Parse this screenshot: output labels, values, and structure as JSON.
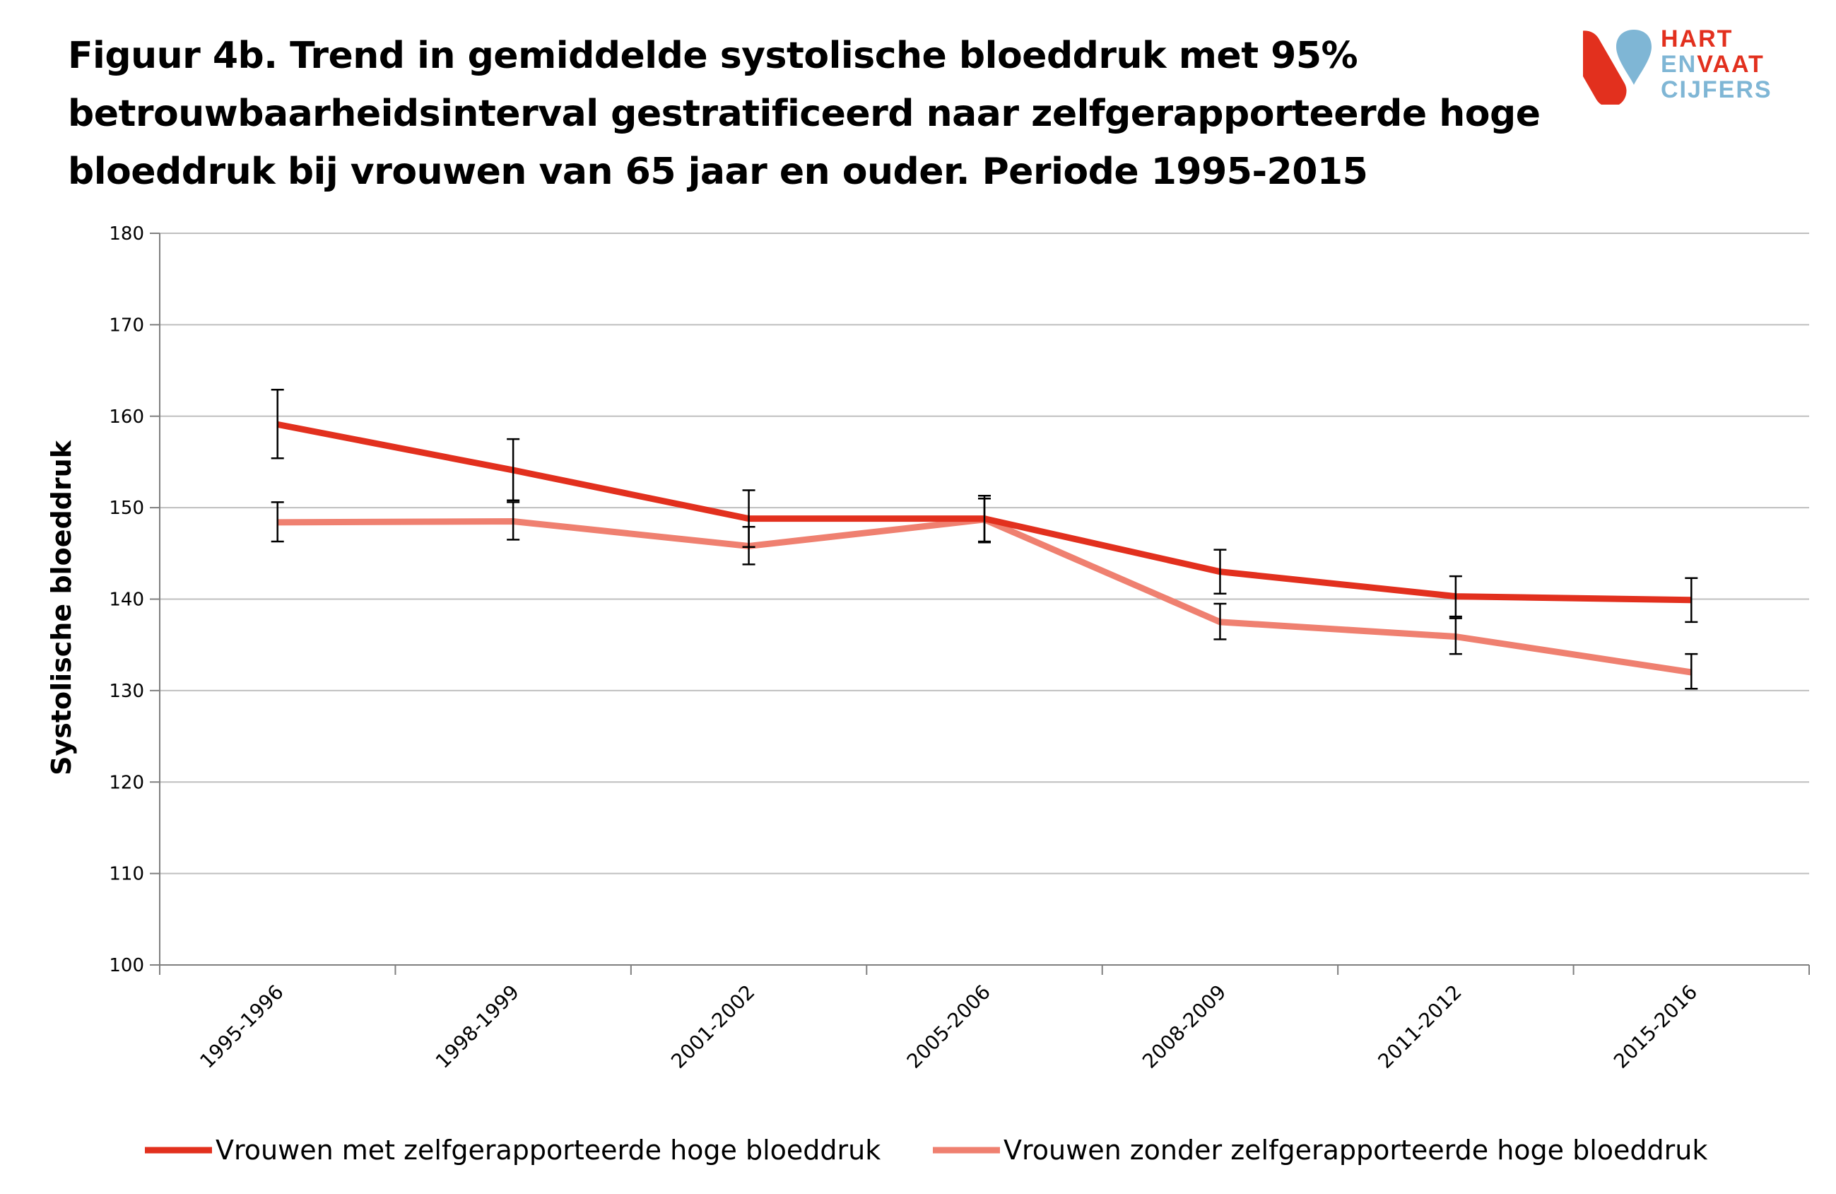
{
  "title_lines": [
    "Figuur 4b. Trend in gemiddelde systolische bloeddruk met 95%",
    "betrouwbaarheidsinterval gestratificeerd naar zelfgerapporteerde hoge",
    "bloeddruk bij vrouwen van 65 jaar en ouder. Periode 1995-2015"
  ],
  "logo": {
    "line1": "HART",
    "line2a": "EN",
    "line2b": "VAAT",
    "line3": "CIJFERS",
    "red": "#e2301e",
    "blue": "#7fb6d5"
  },
  "chart_data": {
    "type": "line",
    "title": "Figuur 4b. Trend in gemiddelde systolische bloeddruk met 95% betrouwbaarheidsinterval gestratificeerd naar zelfgerapporteerde hoge bloeddruk bij vrouwen van 65 jaar en ouder. Periode 1995-2015",
    "xlabel": "",
    "ylabel": "Systolische bloeddruk",
    "ylim": [
      100,
      180
    ],
    "yticks": [
      100,
      110,
      120,
      130,
      140,
      150,
      160,
      170,
      180
    ],
    "grid": true,
    "legend": "bottom",
    "categories": [
      "1995-1996",
      "1998-1999",
      "2001-2002",
      "2005-2006",
      "2008-2009",
      "2011-2012",
      "2015-2016"
    ],
    "series": [
      {
        "name": "Vrouwen met zelfgerapporteerde hoge bloeddruk",
        "color": "#e2301e",
        "values": [
          159.1,
          154.1,
          148.8,
          148.8,
          143.0,
          140.3,
          139.9
        ],
        "ci_lower": [
          155.4,
          150.8,
          145.7,
          146.3,
          140.6,
          138.1,
          137.5
        ],
        "ci_upper": [
          162.9,
          157.5,
          151.9,
          151.3,
          145.4,
          142.5,
          142.3
        ]
      },
      {
        "name": "Vrouwen zonder zelfgerapporteerde hoge bloeddruk",
        "color": "#ef8070",
        "values": [
          148.4,
          148.5,
          145.8,
          148.7,
          137.5,
          135.9,
          132.0
        ],
        "ci_lower": [
          146.3,
          146.5,
          143.8,
          146.2,
          135.6,
          134.0,
          130.2
        ],
        "ci_upper": [
          150.6,
          150.6,
          147.9,
          151.0,
          139.5,
          137.9,
          134.0
        ]
      }
    ]
  }
}
